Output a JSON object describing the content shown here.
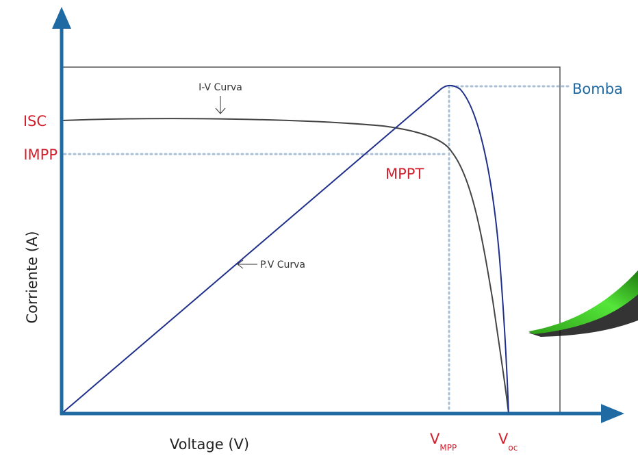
{
  "header": {
    "y_axis_label": "Corriente (A)",
    "x_axis_label": "Voltage (V)"
  },
  "labels": {
    "isc": "ISC",
    "impp": "IMPP",
    "bomba": "Bomba",
    "iv_curve": "I-V Curva",
    "pv_curve": "P.V Curva",
    "mppt": "MPPT",
    "vmpp": {
      "main": "V",
      "sub": "MPP"
    },
    "voc": {
      "main": "V",
      "sub": "oc"
    }
  }
}
